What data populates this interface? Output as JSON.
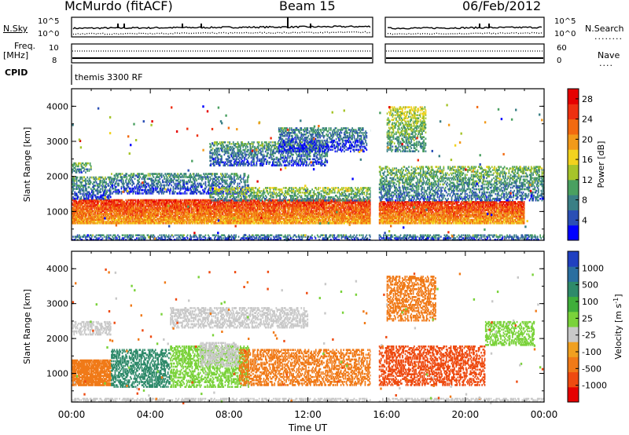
{
  "header": {
    "station": "McMurdo (fitACF)",
    "beam": "Beam 15",
    "date": "06/Feb/2012"
  },
  "strip_labels": {
    "nsky": "N.Sky",
    "nsearch": "N.Search",
    "freq": "Freq.",
    "freq_unit": "[MHz]",
    "nave": "Nave",
    "cpid": "CPID",
    "program": "themis 3300 RF",
    "noise_hi": "10^5",
    "noise_lo": "10^0",
    "freq_hi": "10",
    "freq_lo": "8",
    "nave_hi": "60",
    "nave_lo": "0"
  },
  "chart_data": [
    {
      "type": "heatmap",
      "name": "power",
      "xlabel": "Time UT",
      "ylabel": "Slant Range [km]",
      "x_ticks": [
        "00:00",
        "04:00",
        "08:00",
        "12:00",
        "16:00",
        "20:00",
        "00:00"
      ],
      "x_range_hours": [
        0,
        24
      ],
      "y_ticks": [
        1000,
        2000,
        3000,
        4000
      ],
      "y_range_km": [
        180,
        4500
      ],
      "data_gap_hours": [
        15.2,
        15.6
      ],
      "colorbar": {
        "label": "Power [dB]",
        "ticks": [
          4,
          8,
          12,
          16,
          20,
          24,
          28
        ],
        "range": [
          0,
          30
        ],
        "colors": [
          "#0000ff",
          "#2b4fb5",
          "#3a7f85",
          "#4aa060",
          "#a6c42a",
          "#f2d21e",
          "#f29a1a",
          "#f26a10",
          "#ee3010",
          "#e60000"
        ]
      },
      "scatter_bands": [
        {
          "t0": 0.0,
          "t1": 15.2,
          "r0": 650,
          "r1": 1350,
          "val": 27
        },
        {
          "t0": 0.0,
          "t1": 2.0,
          "r0": 1350,
          "r1": 2000,
          "val": 10
        },
        {
          "t0": 0.0,
          "t1": 1.0,
          "r0": 2100,
          "r1": 2400,
          "val": 12
        },
        {
          "t0": 2.0,
          "t1": 9.0,
          "r0": 1500,
          "r1": 2100,
          "val": 9
        },
        {
          "t0": 7.0,
          "t1": 15.2,
          "r0": 1300,
          "r1": 1700,
          "val": 14
        },
        {
          "t0": 7.0,
          "t1": 13.0,
          "r0": 2300,
          "r1": 3000,
          "val": 10
        },
        {
          "t0": 10.5,
          "t1": 15.0,
          "r0": 2700,
          "r1": 3400,
          "val": 8
        },
        {
          "t0": 15.6,
          "t1": 23.0,
          "r0": 650,
          "r1": 1300,
          "val": 27
        },
        {
          "t0": 15.6,
          "t1": 24.0,
          "r0": 1300,
          "r1": 2300,
          "val": 12
        },
        {
          "t0": 16.0,
          "t1": 18.0,
          "r0": 2700,
          "r1": 4000,
          "val": 15
        },
        {
          "t0": 0.0,
          "t1": 24.0,
          "r0": 180,
          "r1": 350,
          "val": 8
        }
      ]
    },
    {
      "type": "heatmap",
      "name": "velocity",
      "xlabel": "Time UT",
      "ylabel": "Slant Range [km]",
      "x_ticks": [
        "00:00",
        "04:00",
        "08:00",
        "12:00",
        "16:00",
        "20:00",
        "00:00"
      ],
      "x_range_hours": [
        0,
        24
      ],
      "y_ticks": [
        1000,
        2000,
        3000,
        4000
      ],
      "y_range_km": [
        180,
        4500
      ],
      "data_gap_hours": [
        15.2,
        15.6
      ],
      "colorbar": {
        "label": "Velocity [m s^-1]",
        "ticks": [
          "1000",
          "500",
          "100",
          "25",
          "-25",
          "-100",
          "-500",
          "-1000"
        ],
        "colors": [
          "#2040c0",
          "#2a6ea0",
          "#2e8a6a",
          "#3fae3a",
          "#7ad23a",
          "#c8c8c8",
          "#f0a020",
          "#f07a18",
          "#ee4a10",
          "#e60000"
        ]
      },
      "scatter_bands": [
        {
          "t0": 0.0,
          "t1": 2.0,
          "r0": 650,
          "r1": 1400,
          "val": "#f07a18"
        },
        {
          "t0": 2.0,
          "t1": 5.0,
          "r0": 600,
          "r1": 1700,
          "val": "#2e8a6a"
        },
        {
          "t0": 5.0,
          "t1": 9.0,
          "r0": 600,
          "r1": 1800,
          "val": "#7ad23a"
        },
        {
          "t0": 6.5,
          "t1": 8.5,
          "r0": 1200,
          "r1": 1900,
          "val": "#c8c8c8"
        },
        {
          "t0": 8.5,
          "t1": 15.2,
          "r0": 650,
          "r1": 1700,
          "val": "#f07a18"
        },
        {
          "t0": 0.0,
          "t1": 2.0,
          "r0": 2100,
          "r1": 2500,
          "val": "#c8c8c8"
        },
        {
          "t0": 5.0,
          "t1": 12.0,
          "r0": 2300,
          "r1": 2900,
          "val": "#c8c8c8"
        },
        {
          "t0": 15.6,
          "t1": 21.0,
          "r0": 650,
          "r1": 1800,
          "val": "#ee4a10"
        },
        {
          "t0": 16.0,
          "t1": 18.5,
          "r0": 2500,
          "r1": 3800,
          "val": "#f07a18"
        },
        {
          "t0": 21.0,
          "t1": 23.5,
          "r0": 1800,
          "r1": 2500,
          "val": "#7ad23a"
        },
        {
          "t0": 0.0,
          "t1": 24.0,
          "r0": 180,
          "r1": 300,
          "val": "#c8c8c8"
        }
      ]
    }
  ]
}
